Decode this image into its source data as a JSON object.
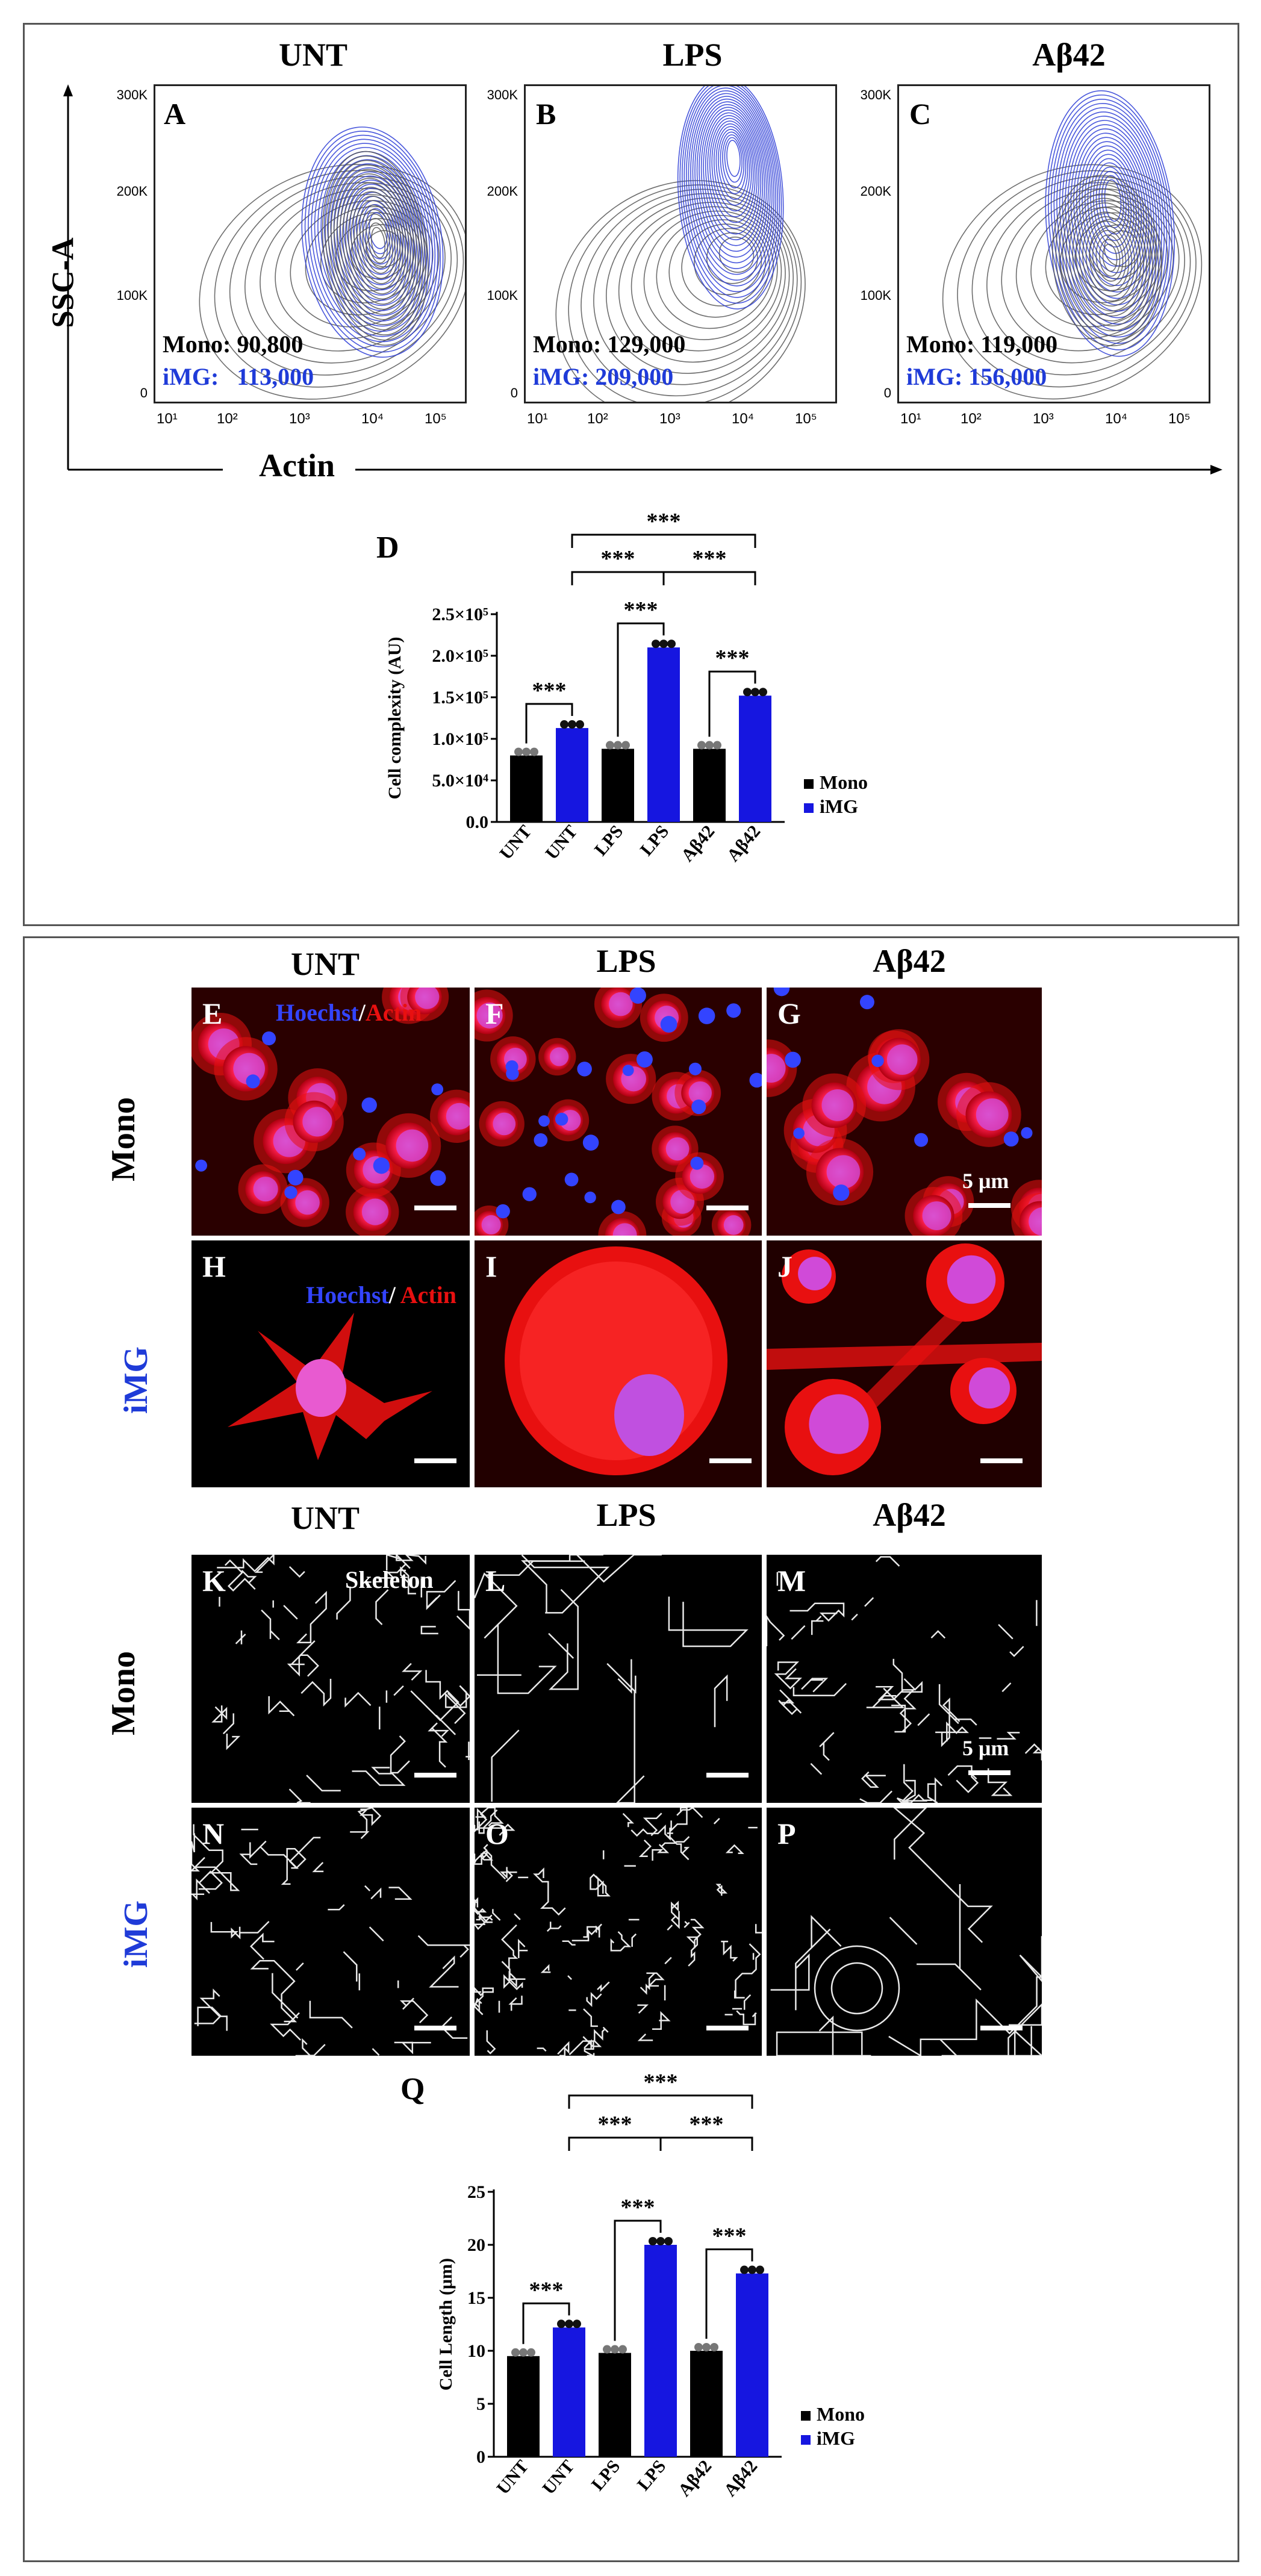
{
  "top": {
    "column_titles": [
      "UNT",
      "LPS",
      "Aβ42"
    ],
    "panel_letters": [
      "A",
      "B",
      "C"
    ],
    "y_axis_label": "SSC-A",
    "x_axis_label": "Actin",
    "y_ticks": [
      "300K",
      "200K",
      "100K",
      "0"
    ],
    "x_ticks": [
      "10¹",
      "10²",
      "10³",
      "10⁴",
      "10⁵"
    ],
    "counts": [
      {
        "mono": "Mono: 90,800",
        "img": "iMG:   113,000"
      },
      {
        "mono": "Mono: 129,000",
        "img": "iMG: 209,000"
      },
      {
        "mono": "Mono: 119,000",
        "img": "iMG: 156,000"
      }
    ],
    "colors": {
      "mono_contour": "#555555",
      "img_contour": "#2a3bd6"
    }
  },
  "bottom": {
    "column_titles_1": [
      "UNT",
      "LPS",
      "Aβ42"
    ],
    "column_titles_2": [
      "UNT",
      "LPS",
      "Aβ42"
    ],
    "row_labels": {
      "mono": "Mono",
      "img": "iMG"
    },
    "staining_panels": [
      {
        "letter": "E",
        "tag": "Hoechst/Actin"
      },
      {
        "letter": "F"
      },
      {
        "letter": "G",
        "scale": "5 μm"
      },
      {
        "letter": "H",
        "tag": "Hoechst/ Actin"
      },
      {
        "letter": "I"
      },
      {
        "letter": "J"
      }
    ],
    "stain_tag_parts": {
      "hoechst": "Hoechst",
      "sep": "/",
      "sep2": "/ ",
      "actin": "Actin"
    },
    "skeleton_panels": [
      {
        "letter": "K",
        "tag": "Skeleton"
      },
      {
        "letter": "L"
      },
      {
        "letter": "M",
        "scale": "5 μm"
      },
      {
        "letter": "N"
      },
      {
        "letter": "O"
      },
      {
        "letter": "P"
      }
    ],
    "colors": {
      "hoechst": "#3344ff",
      "actin": "#e81010",
      "img_label": "#1f3bd8"
    }
  },
  "chart_data": [
    {
      "panel": "D",
      "type": "bar",
      "categories": [
        "UNT",
        "UNT",
        "LPS",
        "LPS",
        "Aβ42",
        "Aβ42"
      ],
      "values": [
        80000,
        113000,
        88000,
        210000,
        88000,
        152000
      ],
      "bar_groups": [
        "Mono",
        "iMG",
        "Mono",
        "iMG",
        "Mono",
        "iMG"
      ],
      "ylabel": "Cell complexity (AU)",
      "ylim": [
        0,
        250000
      ],
      "y_ticks": [
        "0.0",
        "5.0×10⁴",
        "1.0×10⁵",
        "1.5×10⁵",
        "2.0×10⁵",
        "2.5×10⁵"
      ],
      "y_tick_values": [
        0,
        50000,
        100000,
        150000,
        200000,
        250000
      ],
      "legend": [
        {
          "name": "Mono",
          "color": "#000000"
        },
        {
          "name": "iMG",
          "color": "#1616e0"
        }
      ],
      "legend_position": "right",
      "significance": [
        {
          "from": 0,
          "to": 1,
          "label": "***",
          "level": 1
        },
        {
          "from": 2,
          "to": 3,
          "label": "***",
          "level": 1
        },
        {
          "from": 4,
          "to": 5,
          "label": "***",
          "level": 1
        },
        {
          "from": 1,
          "to": 3,
          "label": "***",
          "level": 2
        },
        {
          "from": 3,
          "to": 5,
          "label": "***",
          "level": 2
        },
        {
          "from": 1,
          "to": 5,
          "label": "***",
          "level": 3
        }
      ]
    },
    {
      "panel": "Q",
      "type": "bar",
      "categories": [
        "UNT",
        "UNT",
        "LPS",
        "LPS",
        "Aβ42",
        "Aβ42"
      ],
      "values": [
        9.5,
        12.2,
        9.8,
        20.0,
        10.0,
        17.3
      ],
      "bar_groups": [
        "Mono",
        "iMG",
        "Mono",
        "iMG",
        "Mono",
        "iMG"
      ],
      "ylabel": "Cell Length (μm)",
      "ylim": [
        0,
        25
      ],
      "y_ticks": [
        "0",
        "5",
        "10",
        "15",
        "20",
        "25"
      ],
      "y_tick_values": [
        0,
        5,
        10,
        15,
        20,
        25
      ],
      "legend": [
        {
          "name": "Mono",
          "color": "#000000"
        },
        {
          "name": "iMG",
          "color": "#1616e0"
        }
      ],
      "legend_position": "right",
      "significance": [
        {
          "from": 0,
          "to": 1,
          "label": "***",
          "level": 1
        },
        {
          "from": 2,
          "to": 3,
          "label": "***",
          "level": 1
        },
        {
          "from": 4,
          "to": 5,
          "label": "***",
          "level": 1
        },
        {
          "from": 1,
          "to": 3,
          "label": "***",
          "level": 2
        },
        {
          "from": 3,
          "to": 5,
          "label": "***",
          "level": 2
        },
        {
          "from": 1,
          "to": 5,
          "label": "***",
          "level": 3
        }
      ]
    }
  ]
}
